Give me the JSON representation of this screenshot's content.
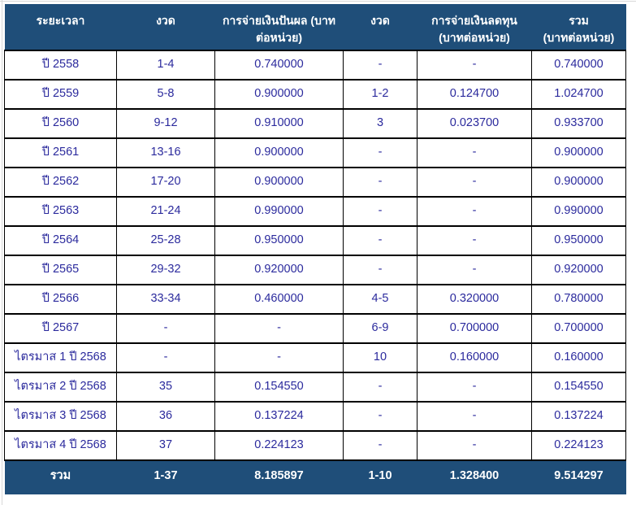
{
  "colors": {
    "header_bg": "#1F4E79",
    "data_text": "#2B2A9D",
    "border": "#000000",
    "header_text": "#FFFFFF"
  },
  "table": {
    "header_lines": [
      "ระยะเวลา",
      "งวด",
      "การจ่ายเงินปันผล (บาท\nต่อหน่วย)",
      "งวด",
      "การจ่ายเงินลดทุน\n(บาทต่อหน่วย)",
      "รวม\n(บาทต่อหน่วย)"
    ]
  },
  "chart_data": {
    "type": "table",
    "title": "",
    "columns": [
      "ระยะเวลา",
      "งวด",
      "การจ่ายเงินปันผล (บาทต่อหน่วย)",
      "งวด",
      "การจ่ายเงินลดทุน (บาทต่อหน่วย)",
      "รวม (บาทต่อหน่วย)"
    ],
    "rows": [
      [
        "ปี 2558",
        "1-4",
        "0.740000",
        "-",
        "-",
        "0.740000"
      ],
      [
        "ปี 2559",
        "5-8",
        "0.900000",
        "1-2",
        "0.124700",
        "1.024700"
      ],
      [
        "ปี 2560",
        "9-12",
        "0.910000",
        "3",
        "0.023700",
        "0.933700"
      ],
      [
        "ปี 2561",
        "13-16",
        "0.900000",
        "-",
        "-",
        "0.900000"
      ],
      [
        "ปี 2562",
        "17-20",
        "0.900000",
        "-",
        "-",
        "0.900000"
      ],
      [
        "ปี 2563",
        "21-24",
        "0.990000",
        "-",
        "-",
        "0.990000"
      ],
      [
        "ปี 2564",
        "25-28",
        "0.950000",
        "-",
        "-",
        "0.950000"
      ],
      [
        "ปี 2565",
        "29-32",
        "0.920000",
        "-",
        "-",
        "0.920000"
      ],
      [
        "ปี 2566",
        "33-34",
        "0.460000",
        "4-5",
        "0.320000",
        "0.780000"
      ],
      [
        "ปี 2567",
        "-",
        "-",
        "6-9",
        "0.700000",
        "0.700000"
      ],
      [
        "ไตรมาส 1 ปี 2568",
        "-",
        "-",
        "10",
        "0.160000",
        "0.160000"
      ],
      [
        "ไตรมาส 2 ปี 2568",
        "35",
        "0.154550",
        "-",
        "-",
        "0.154550"
      ],
      [
        "ไตรมาส 3 ปี 2568",
        "36",
        "0.137224",
        "-",
        "-",
        "0.137224"
      ],
      [
        "ไตรมาส 4 ปี 2568",
        "37",
        "0.224123",
        "-",
        "-",
        "0.224123"
      ]
    ],
    "totals": [
      "รวม",
      "1-37",
      "8.185897",
      "1-10",
      "1.328400",
      "9.514297"
    ]
  }
}
